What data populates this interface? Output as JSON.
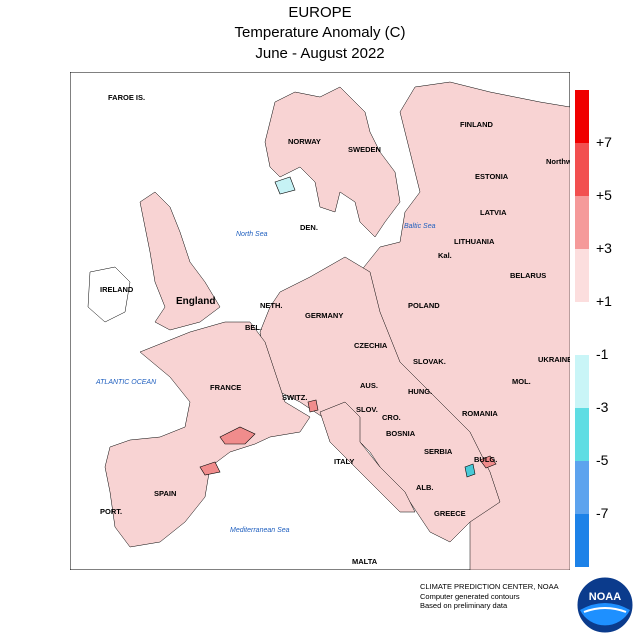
{
  "title": {
    "region": "EUROPE",
    "variable": "Temperature Anomaly (C)",
    "period": "June - August 2022"
  },
  "map": {
    "countries": [
      "FAROE IS.",
      "NORWAY",
      "SWEDEN",
      "FINLAND",
      "ESTONIA",
      "LATVIA",
      "LITHUANIA",
      "BELARUS",
      "Kal.",
      "DEN.",
      "IRELAND",
      "England",
      "NETH.",
      "BEL.",
      "GERMANY",
      "POLAND",
      "CZECHIA",
      "SLOVAK.",
      "AUS.",
      "HUNG.",
      "UKRAINE",
      "MOL.",
      "ROMANIA",
      "FRANCE",
      "SWITZ.",
      "SLOV.",
      "CRO.",
      "BOSNIA",
      "SERBIA",
      "BULG.",
      "ALB.",
      "GREECE",
      "ITALY",
      "SPAIN",
      "PORT.",
      "MALTA",
      "Northwest District"
    ],
    "seas": [
      "North Sea",
      "Baltic Sea",
      "ATLANTIC OCEAN",
      "Mediterranean Sea"
    ],
    "colors": {
      "land_warm": "#f8d3d3",
      "land_mod": "#f08c8c",
      "cold": "#c6f2f5",
      "cold2": "#48c9d6"
    }
  },
  "legend": {
    "ticks": [
      "+7",
      "+5",
      "+3",
      "+1",
      "-1",
      "-3",
      "-5",
      "-7"
    ],
    "colors": [
      "#f00000",
      "#f25050",
      "#f59a9a",
      "#fcdede",
      "#ffffff",
      "#c9f5f7",
      "#5fdde3",
      "#5da3ee",
      "#1d82e8"
    ]
  },
  "credits": {
    "line1": "CLIMATE PREDICTION CENTER, NOAA",
    "line2": "Computer generated contours",
    "line3": "Based on preliminary data",
    "logo_text": "NOAA"
  }
}
